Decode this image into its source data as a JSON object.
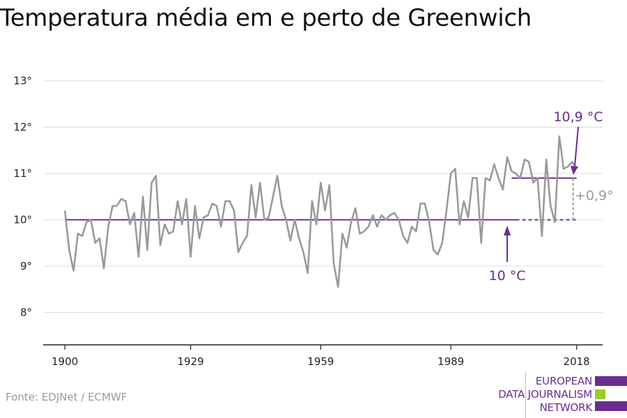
{
  "title": "Temperatura média em e perto de Greenwich",
  "source": "Fonte: EDJNet / ECMWF",
  "logo": {
    "lines": [
      "EUROPEAN",
      "DATA JOURNALISM",
      "NETWORK"
    ],
    "colors": [
      "#6b2c91",
      "#9ccc2a",
      "#6b2c91"
    ]
  },
  "colors": {
    "series": "#9a9a9a",
    "accent": "#6b2c91",
    "grid": "#dddddd",
    "axis": "#222222"
  },
  "chart_data": {
    "type": "line",
    "title": "Temperatura média em e perto de Greenwich",
    "xlabel": "",
    "ylabel": "",
    "xlim": [
      1895,
      2024
    ],
    "ylim": [
      7.3,
      13.3
    ],
    "xticks": [
      1900,
      1929,
      1959,
      1989,
      2018
    ],
    "yticks": [
      8,
      9,
      10,
      11,
      12,
      13
    ],
    "ytick_labels": [
      "8°",
      "9°",
      "10°",
      "11°",
      "12°",
      "13°"
    ],
    "grid": true,
    "series": [
      {
        "values": [
          [
            1900,
            10.2
          ],
          [
            1901,
            9.35
          ],
          [
            1902,
            8.9
          ],
          [
            1903,
            9.7
          ],
          [
            1904,
            9.65
          ],
          [
            1905,
            9.95
          ],
          [
            1906,
            10.0
          ],
          [
            1907,
            9.5
          ],
          [
            1908,
            9.6
          ],
          [
            1909,
            8.95
          ],
          [
            1910,
            9.85
          ],
          [
            1911,
            10.3
          ],
          [
            1912,
            10.3
          ],
          [
            1913,
            10.45
          ],
          [
            1914,
            10.4
          ],
          [
            1915,
            9.9
          ],
          [
            1916,
            10.15
          ],
          [
            1917,
            9.2
          ],
          [
            1918,
            10.5
          ],
          [
            1919,
            9.35
          ],
          [
            1920,
            10.8
          ],
          [
            1921,
            10.95
          ],
          [
            1922,
            9.45
          ],
          [
            1923,
            9.9
          ],
          [
            1924,
            9.7
          ],
          [
            1925,
            9.75
          ],
          [
            1926,
            10.4
          ],
          [
            1927,
            9.9
          ],
          [
            1928,
            10.45
          ],
          [
            1929,
            9.2
          ],
          [
            1930,
            10.3
          ],
          [
            1931,
            9.6
          ],
          [
            1932,
            10.05
          ],
          [
            1933,
            10.1
          ],
          [
            1934,
            10.35
          ],
          [
            1935,
            10.3
          ],
          [
            1936,
            9.85
          ],
          [
            1937,
            10.4
          ],
          [
            1938,
            10.4
          ],
          [
            1939,
            10.2
          ],
          [
            1940,
            9.3
          ],
          [
            1941,
            9.5
          ],
          [
            1942,
            9.65
          ],
          [
            1943,
            10.75
          ],
          [
            1944,
            10.05
          ],
          [
            1945,
            10.8
          ],
          [
            1946,
            10.0
          ],
          [
            1947,
            10.05
          ],
          [
            1948,
            10.5
          ],
          [
            1949,
            10.95
          ],
          [
            1950,
            10.3
          ],
          [
            1951,
            10.0
          ],
          [
            1952,
            9.55
          ],
          [
            1953,
            10.0
          ],
          [
            1954,
            9.6
          ],
          [
            1955,
            9.3
          ],
          [
            1956,
            8.85
          ],
          [
            1957,
            10.4
          ],
          [
            1958,
            9.9
          ],
          [
            1959,
            10.8
          ],
          [
            1960,
            10.2
          ],
          [
            1961,
            10.75
          ],
          [
            1962,
            9.05
          ],
          [
            1963,
            8.55
          ],
          [
            1964,
            9.7
          ],
          [
            1965,
            9.4
          ],
          [
            1966,
            9.95
          ],
          [
            1967,
            10.25
          ],
          [
            1968,
            9.7
          ],
          [
            1969,
            9.75
          ],
          [
            1970,
            9.85
          ],
          [
            1971,
            10.1
          ],
          [
            1972,
            9.85
          ],
          [
            1973,
            10.1
          ],
          [
            1974,
            10.0
          ],
          [
            1975,
            10.1
          ],
          [
            1976,
            10.15
          ],
          [
            1977,
            10.0
          ],
          [
            1978,
            9.65
          ],
          [
            1979,
            9.5
          ],
          [
            1980,
            9.85
          ],
          [
            1981,
            9.75
          ],
          [
            1982,
            10.35
          ],
          [
            1983,
            10.35
          ],
          [
            1984,
            9.95
          ],
          [
            1985,
            9.35
          ],
          [
            1986,
            9.25
          ],
          [
            1987,
            9.5
          ],
          [
            1988,
            10.2
          ],
          [
            1989,
            11.0
          ],
          [
            1990,
            11.1
          ],
          [
            1991,
            9.9
          ],
          [
            1992,
            10.4
          ],
          [
            1993,
            10.05
          ],
          [
            1994,
            10.9
          ],
          [
            1995,
            10.9
          ],
          [
            1996,
            9.5
          ],
          [
            1997,
            10.9
          ],
          [
            1998,
            10.85
          ],
          [
            1999,
            11.2
          ],
          [
            2000,
            10.9
          ],
          [
            2001,
            10.65
          ],
          [
            2002,
            11.35
          ],
          [
            2003,
            11.05
          ],
          [
            2004,
            11.0
          ],
          [
            2005,
            10.9
          ],
          [
            2006,
            11.3
          ],
          [
            2007,
            11.25
          ],
          [
            2008,
            10.8
          ],
          [
            2009,
            10.9
          ],
          [
            2010,
            9.65
          ],
          [
            2011,
            11.3
          ],
          [
            2012,
            10.3
          ],
          [
            2013,
            9.95
          ],
          [
            2014,
            11.8
          ],
          [
            2015,
            11.1
          ],
          [
            2016,
            11.15
          ],
          [
            2017,
            11.25
          ],
          [
            2018,
            11.1
          ]
        ]
      }
    ],
    "reference": {
      "baseline": {
        "value": 10,
        "from": 1900,
        "to": 2018,
        "dash_from": 2004
      },
      "recent": {
        "value": 10.9,
        "from": 2003,
        "to": 2018
      }
    },
    "annotations": {
      "baseline_label": "10 °C",
      "recent_label": "10,9 °C",
      "difference_label": "+0,9°"
    }
  }
}
